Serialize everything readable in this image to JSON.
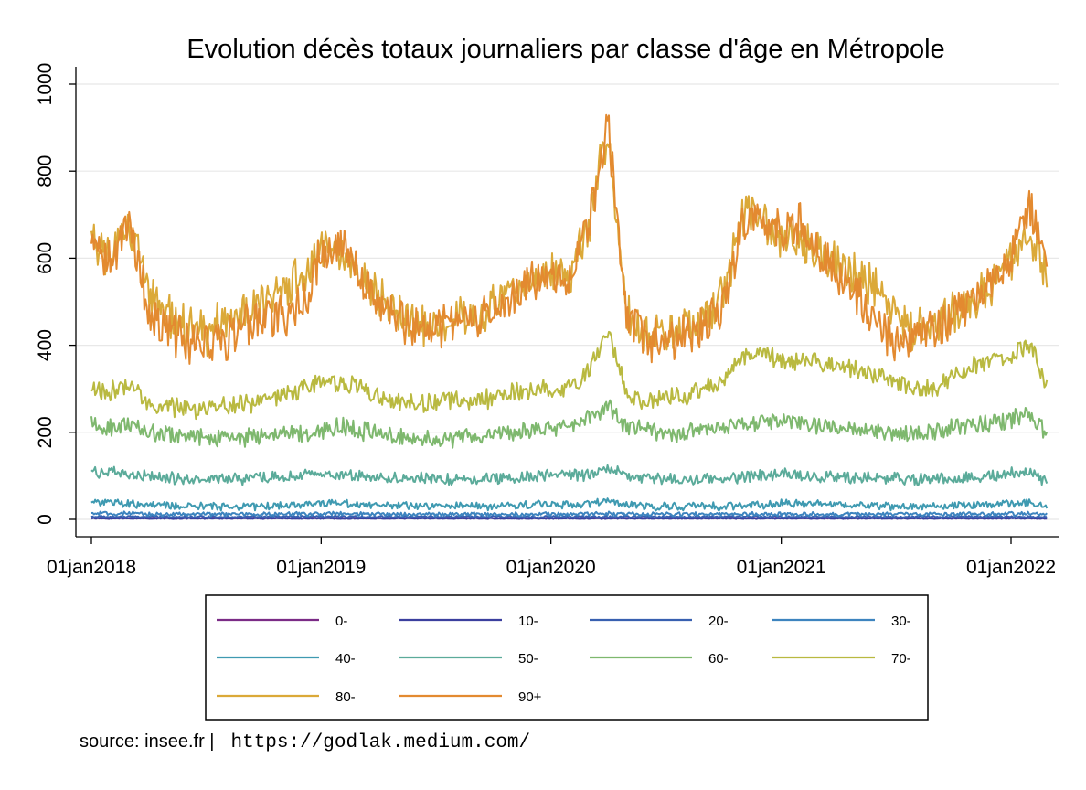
{
  "colors": {
    "background": "#ffffff",
    "grid": "#e8e8e8",
    "axis": "#000000"
  },
  "footer": {
    "source_label": "source: insee.fr |",
    "url": "https://godlak.medium.com/"
  },
  "chart_data": {
    "type": "line",
    "title": "Evolution décès totaux journaliers par classe d'âge en Métropole",
    "xlabel": "",
    "ylabel": "",
    "x_range": [
      "2018-01-01",
      "2022-03-01"
    ],
    "ylim": [
      -20,
      1040
    ],
    "grid": true,
    "legend_position": "bottom",
    "x_ticks": [
      {
        "date": "2018-01-01",
        "label": "01jan2018"
      },
      {
        "date": "2019-01-01",
        "label": "01jan2019"
      },
      {
        "date": "2020-01-01",
        "label": "01jan2020"
      },
      {
        "date": "2021-01-01",
        "label": "01jan2021"
      },
      {
        "date": "2022-01-01",
        "label": "01jan2022"
      }
    ],
    "y_ticks": [
      0,
      200,
      400,
      600,
      800,
      1000
    ],
    "knot_dates": [
      "2018-01-01",
      "2018-02-01",
      "2018-03-01",
      "2018-04-01",
      "2018-05-01",
      "2018-06-01",
      "2018-07-01",
      "2018-08-01",
      "2018-09-01",
      "2018-10-01",
      "2018-11-01",
      "2018-12-01",
      "2019-01-01",
      "2019-02-01",
      "2019-03-01",
      "2019-04-01",
      "2019-05-01",
      "2019-06-01",
      "2019-07-01",
      "2019-08-01",
      "2019-09-01",
      "2019-10-01",
      "2019-11-01",
      "2019-12-01",
      "2020-01-01",
      "2020-02-01",
      "2020-03-01",
      "2020-04-01",
      "2020-05-01",
      "2020-06-01",
      "2020-07-01",
      "2020-08-01",
      "2020-09-01",
      "2020-10-01",
      "2020-11-01",
      "2020-12-01",
      "2021-01-01",
      "2021-02-01",
      "2021-03-01",
      "2021-04-01",
      "2021-05-01",
      "2021-06-01",
      "2021-07-01",
      "2021-08-01",
      "2021-09-01",
      "2021-10-01",
      "2021-11-01",
      "2021-12-01",
      "2022-01-01",
      "2022-02-01",
      "2022-02-28"
    ],
    "series": [
      {
        "name": "0-",
        "color": "#7b2b86",
        "values": [
          3,
          3,
          3,
          3,
          3,
          3,
          3,
          3,
          3,
          3,
          3,
          3,
          3,
          3,
          3,
          3,
          3,
          3,
          3,
          3,
          3,
          3,
          3,
          3,
          3,
          3,
          3,
          3,
          3,
          3,
          3,
          3,
          3,
          3,
          3,
          3,
          3,
          3,
          3,
          3,
          3,
          3,
          3,
          3,
          3,
          3,
          3,
          3,
          3,
          3,
          3
        ],
        "noise": 1
      },
      {
        "name": "10-",
        "color": "#3b3f9e",
        "values": [
          2,
          2,
          2,
          2,
          2,
          2,
          2,
          2,
          2,
          2,
          2,
          2,
          2,
          2,
          2,
          2,
          2,
          2,
          2,
          2,
          2,
          2,
          2,
          2,
          2,
          2,
          2,
          2,
          2,
          2,
          2,
          2,
          2,
          2,
          2,
          2,
          2,
          2,
          2,
          2,
          2,
          2,
          2,
          2,
          2,
          2,
          2,
          2,
          2,
          2,
          2
        ],
        "noise": 1
      },
      {
        "name": "20-",
        "color": "#3860b0",
        "values": [
          6,
          6,
          6,
          6,
          6,
          6,
          6,
          6,
          6,
          6,
          6,
          6,
          6,
          6,
          6,
          6,
          6,
          6,
          6,
          6,
          6,
          6,
          6,
          6,
          6,
          6,
          6,
          6,
          6,
          6,
          6,
          6,
          6,
          6,
          6,
          6,
          6,
          6,
          6,
          6,
          6,
          6,
          6,
          6,
          6,
          6,
          6,
          6,
          6,
          6,
          6
        ],
        "noise": 2
      },
      {
        "name": "30-",
        "color": "#3d84bf",
        "values": [
          13,
          13,
          13,
          12,
          12,
          12,
          12,
          12,
          12,
          12,
          12,
          13,
          13,
          13,
          12,
          12,
          12,
          12,
          12,
          12,
          12,
          12,
          12,
          12,
          12,
          12,
          13,
          14,
          12,
          12,
          12,
          12,
          12,
          12,
          12,
          12,
          12,
          12,
          12,
          12,
          12,
          12,
          12,
          12,
          12,
          12,
          12,
          12,
          13,
          13,
          12
        ],
        "noise": 4
      },
      {
        "name": "40-",
        "color": "#3f9ab1",
        "values": [
          42,
          38,
          35,
          33,
          31,
          30,
          30,
          30,
          30,
          30,
          32,
          34,
          38,
          38,
          35,
          33,
          31,
          30,
          30,
          30,
          30,
          30,
          32,
          34,
          36,
          34,
          36,
          42,
          32,
          30,
          30,
          30,
          30,
          30,
          32,
          34,
          36,
          36,
          36,
          34,
          33,
          31,
          30,
          30,
          30,
          31,
          33,
          34,
          36,
          38,
          32
        ],
        "noise": 8
      },
      {
        "name": "50-",
        "color": "#5bab9a",
        "values": [
          112,
          106,
          102,
          98,
          95,
          93,
          92,
          92,
          93,
          95,
          97,
          100,
          103,
          102,
          100,
          97,
          95,
          93,
          92,
          92,
          93,
          95,
          97,
          100,
          102,
          100,
          104,
          118,
          100,
          94,
          93,
          92,
          93,
          95,
          98,
          100,
          103,
          102,
          100,
          98,
          96,
          94,
          93,
          92,
          93,
          95,
          97,
          100,
          106,
          108,
          86
        ],
        "noise": 12
      },
      {
        "name": "60-",
        "color": "#7eb86e",
        "values": [
          215,
          210,
          218,
          203,
          195,
          190,
          188,
          190,
          188,
          192,
          195,
          200,
          205,
          212,
          205,
          198,
          192,
          188,
          185,
          188,
          190,
          195,
          200,
          205,
          210,
          208,
          235,
          255,
          215,
          205,
          195,
          195,
          205,
          210,
          220,
          222,
          225,
          220,
          215,
          212,
          210,
          205,
          200,
          200,
          202,
          210,
          215,
          220,
          230,
          240,
          195
        ],
        "noise": 18
      },
      {
        "name": "70-",
        "color": "#b9b940",
        "values": [
          300,
          292,
          305,
          270,
          258,
          252,
          255,
          262,
          265,
          275,
          285,
          300,
          320,
          315,
          305,
          285,
          272,
          265,
          270,
          272,
          272,
          280,
          290,
          298,
          302,
          305,
          340,
          430,
          285,
          275,
          278,
          285,
          300,
          320,
          375,
          385,
          365,
          360,
          355,
          352,
          342,
          335,
          320,
          300,
          300,
          330,
          350,
          360,
          375,
          405,
          300
        ],
        "noise": 20
      },
      {
        "name": "80-",
        "color": "#dba938",
        "values": [
          650,
          600,
          680,
          520,
          470,
          440,
          430,
          455,
          470,
          495,
          530,
          555,
          620,
          610,
          560,
          510,
          470,
          450,
          455,
          460,
          470,
          490,
          520,
          550,
          575,
          560,
          680,
          900,
          470,
          430,
          420,
          430,
          460,
          520,
          700,
          690,
          650,
          640,
          620,
          590,
          560,
          530,
          470,
          430,
          440,
          470,
          500,
          540,
          600,
          630,
          560
        ],
        "noise": 45
      },
      {
        "name": "90+",
        "color": "#e38a30",
        "values": [
          660,
          590,
          690,
          480,
          430,
          405,
          395,
          420,
          440,
          460,
          470,
          490,
          610,
          635,
          560,
          490,
          460,
          435,
          440,
          445,
          450,
          470,
          520,
          550,
          560,
          540,
          690,
          900,
          455,
          420,
          410,
          420,
          450,
          500,
          690,
          690,
          660,
          680,
          620,
          570,
          520,
          450,
          410,
          420,
          440,
          470,
          500,
          540,
          600,
          720,
          580
        ],
        "noise": 45
      }
    ]
  }
}
